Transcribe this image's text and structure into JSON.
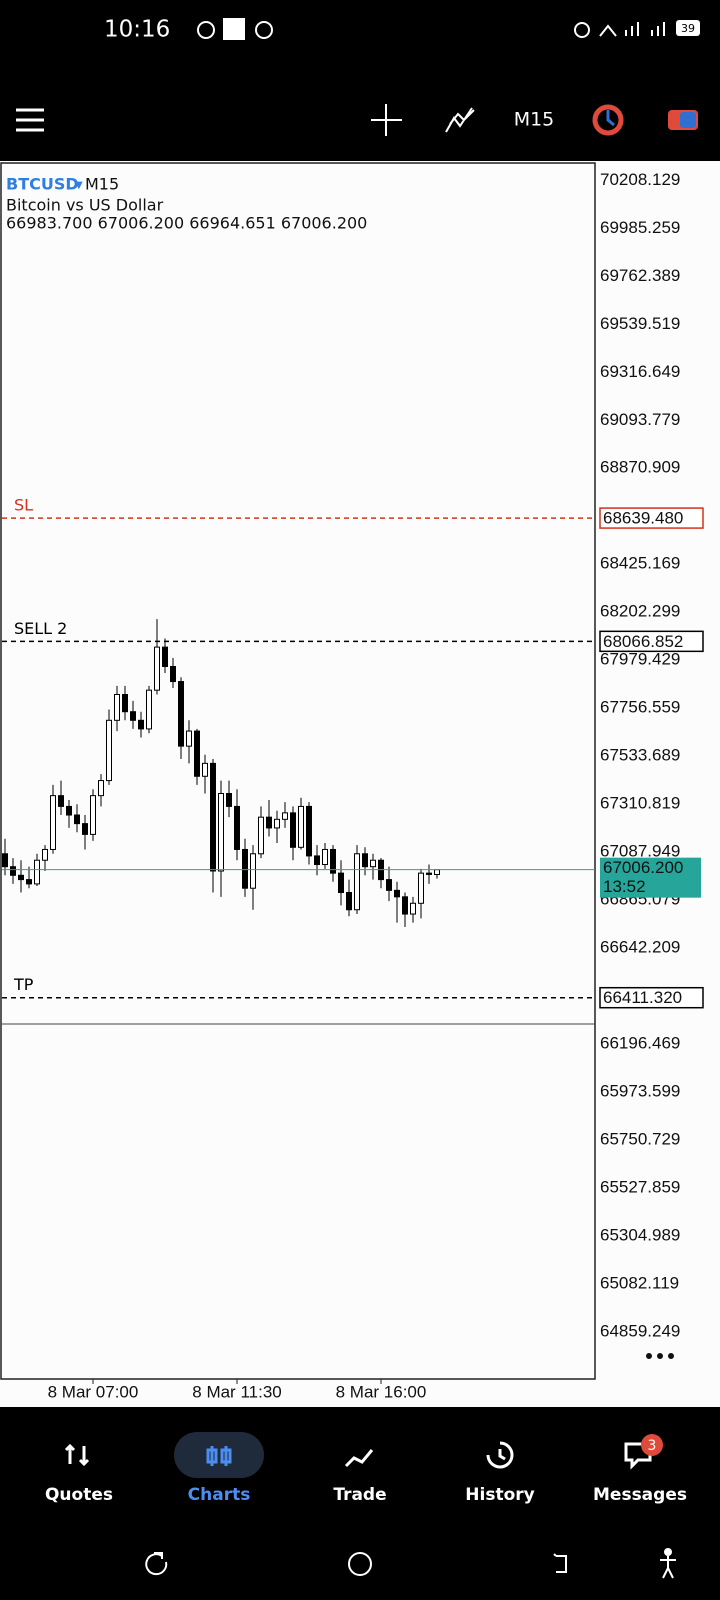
{
  "status_bar": {
    "time": "10:16",
    "battery": "39"
  },
  "toolbar": {
    "timeframe": "M15"
  },
  "chart_data": {
    "type": "candlestick",
    "symbol": "BTCUSD",
    "timeframe": "M15",
    "description": "Bitcoin vs US Dollar",
    "ohlc_text": "66983.700 67006.200 66964.651 67006.200",
    "categories": [
      null,
      null,
      null,
      null,
      null,
      null,
      null,
      null,
      null,
      null,
      null,
      "8 Mar 07:00",
      null,
      null,
      null,
      null,
      null,
      null,
      null,
      null,
      null,
      null,
      null,
      null,
      null,
      null,
      null,
      null,
      null,
      "8 Mar 11:30",
      null,
      null,
      null,
      null,
      null,
      null,
      null,
      null,
      null,
      null,
      null,
      null,
      null,
      null,
      null,
      null,
      null,
      "8 Mar 16:00",
      null,
      null,
      null,
      null,
      null,
      null,
      null
    ],
    "open": [
      67080,
      67020,
      66980,
      66960,
      66940,
      67050,
      67100,
      67350,
      67300,
      67260,
      67220,
      67170,
      67350,
      67420,
      67700,
      67820,
      67740,
      67700,
      67660,
      67840,
      68040,
      67950,
      67880,
      67580,
      67650,
      67440,
      67500,
      67000,
      67360,
      67300,
      67100,
      66920,
      67080,
      67250,
      67200,
      67240,
      67270,
      67110,
      67300,
      67070,
      67030,
      67100,
      66990,
      66900,
      66820,
      67080,
      67020,
      67050,
      66960,
      66910,
      66880,
      66800,
      66850,
      66990,
      66983.7
    ],
    "high": [
      67150,
      67060,
      67050,
      67020,
      67080,
      67120,
      67400,
      67420,
      67330,
      67310,
      67260,
      67380,
      67450,
      67750,
      67860,
      67860,
      67790,
      67740,
      67860,
      68170,
      68080,
      67990,
      67900,
      67700,
      67660,
      67540,
      67520,
      67420,
      67420,
      67380,
      67150,
      67120,
      67300,
      67330,
      67280,
      67320,
      67300,
      67340,
      67320,
      67120,
      67130,
      67120,
      67050,
      66960,
      67120,
      67110,
      67080,
      67060,
      67020,
      66950,
      66900,
      66880,
      67010,
      67030,
      67006.2
    ],
    "low": [
      66980,
      66940,
      66900,
      66920,
      66930,
      67000,
      67080,
      67260,
      67200,
      67180,
      67100,
      67140,
      67300,
      67400,
      67650,
      67700,
      67660,
      67620,
      67640,
      67820,
      67920,
      67850,
      67520,
      67500,
      67400,
      67360,
      66900,
      66880,
      67250,
      67050,
      66880,
      66820,
      67060,
      67160,
      67130,
      67200,
      67050,
      67100,
      67030,
      66980,
      67010,
      66950,
      66840,
      66790,
      66800,
      66980,
      66960,
      66920,
      66860,
      66760,
      66740,
      66760,
      66780,
      66940,
      66964.651
    ],
    "close": [
      67020,
      66980,
      66960,
      66940,
      67050,
      67100,
      67350,
      67300,
      67260,
      67220,
      67170,
      67350,
      67420,
      67700,
      67820,
      67740,
      67700,
      67660,
      67840,
      68040,
      67950,
      67880,
      67580,
      67650,
      67440,
      67500,
      67000,
      67360,
      67300,
      67100,
      66920,
      67080,
      67250,
      67200,
      67240,
      67270,
      67110,
      67300,
      67070,
      67030,
      67100,
      66990,
      66900,
      66820,
      67080,
      67020,
      67050,
      66960,
      66910,
      66880,
      66800,
      66850,
      66990,
      66984,
      67006.2
    ],
    "up_color": "#ffffff",
    "down_color": "#000000",
    "ylim": [
      64640,
      70289
    ],
    "yticks": [
      70208.129,
      69985.259,
      69762.389,
      69539.519,
      69316.649,
      69093.779,
      68870.909,
      68425.169,
      68202.299,
      67979.429,
      67756.559,
      67533.689,
      67310.819,
      67087.949,
      66865.079,
      66642.209,
      66196.469,
      65973.599,
      65750.729,
      65527.859,
      65304.989,
      65082.119,
      64859.249
    ],
    "levels": [
      {
        "label": "SL",
        "value": 68639.48,
        "value_label": "68639.480",
        "color": "#d0341c"
      },
      {
        "label": "SELL 2",
        "value": 68066.852,
        "value_label": "68066.852",
        "color": "#000000"
      },
      {
        "label": "TP",
        "value": 66411.32,
        "value_label": "66411.320",
        "color": "#000000"
      }
    ],
    "bid": {
      "value": 67006.2,
      "value_label": "67006.200",
      "timer": "13:52",
      "color": "#26a69a"
    }
  },
  "nav": {
    "items": [
      "Quotes",
      "Charts",
      "Trade",
      "History",
      "Messages"
    ],
    "active": 1,
    "badge": "3"
  }
}
